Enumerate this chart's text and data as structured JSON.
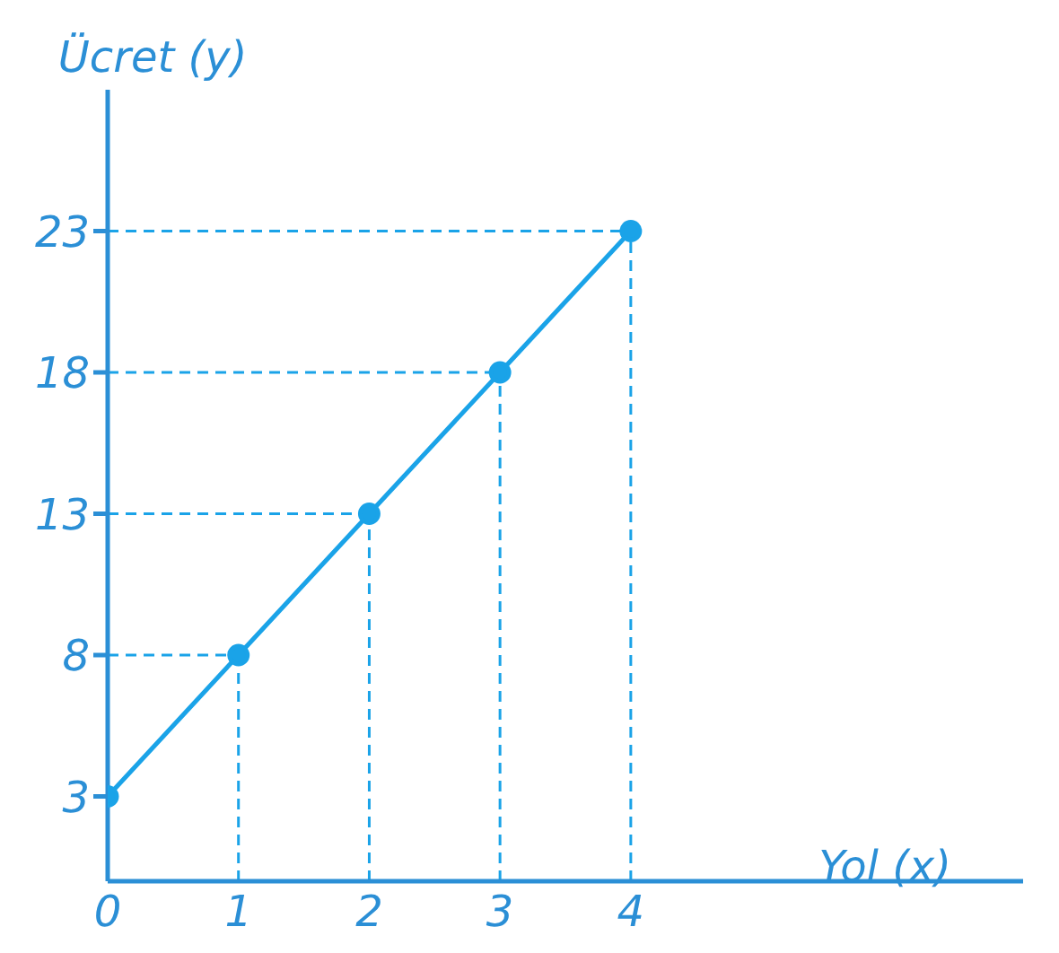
{
  "chart_data": {
    "type": "line",
    "xlabel": "Yol (x)",
    "ylabel": "Ücret (y)",
    "x": [
      0,
      1,
      2,
      3,
      4
    ],
    "series": [
      {
        "color": "#1aa3e8",
        "values": [
          3,
          8,
          13,
          18,
          23
        ]
      }
    ],
    "xlim": [
      0,
      7
    ],
    "xticks": [
      0,
      1,
      2,
      3,
      4
    ],
    "ylim": [
      0,
      28
    ],
    "yticks": [
      3,
      8,
      13,
      18,
      23
    ],
    "marker": "circle",
    "line_style": "solid",
    "grid": false,
    "ref_lines": [
      {
        "axis": "x",
        "value": 1,
        "color": "#1aa3e8",
        "line_style": "dashed"
      },
      {
        "axis": "x",
        "value": 2,
        "color": "#1aa3e8",
        "line_style": "dashed"
      },
      {
        "axis": "x",
        "value": 3,
        "color": "#1aa3e8",
        "line_style": "dashed"
      },
      {
        "axis": "x",
        "value": 4,
        "color": "#1aa3e8",
        "line_style": "dashed"
      },
      {
        "axis": "y",
        "value": 8,
        "color": "#1aa3e8",
        "line_style": "dashed"
      },
      {
        "axis": "y",
        "value": 13,
        "color": "#1aa3e8",
        "line_style": "dashed"
      },
      {
        "axis": "y",
        "value": 18,
        "color": "#1aa3e8",
        "line_style": "dashed"
      },
      {
        "axis": "y",
        "value": 23,
        "color": "#1aa3e8",
        "line_style": "dashed"
      }
    ]
  }
}
